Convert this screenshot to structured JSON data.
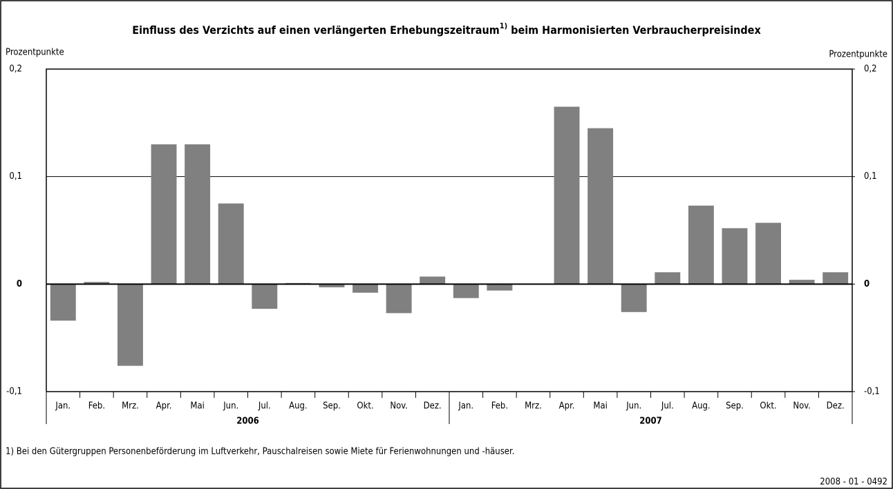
{
  "chart_data": {
    "type": "bar",
    "title": [
      "Einfluss des Verzichts auf einen verlängerten Erhebungszeitraum",
      "1)",
      " beim Harmonisierten Verbraucherpreisindex"
    ],
    "y_label": "Prozentpunkte",
    "y2_label": "Prozentpunkte",
    "categories": [
      "Jan.",
      "Feb.",
      "Mrz.",
      "Apr.",
      "Mai",
      "Jun.",
      "Jul.",
      "Aug.",
      "Sep.",
      "Okt.",
      "Nov.",
      "Dez.",
      "Jan.",
      "Feb.",
      "Mrz.",
      "Apr.",
      "Mai",
      "Jun.",
      "Jul.",
      "Aug.",
      "Sep.",
      "Okt.",
      "Nov.",
      "Dez."
    ],
    "groups": [
      "2006",
      "2007"
    ],
    "values": [
      -0.034,
      0.002,
      -0.076,
      0.13,
      0.13,
      0.075,
      -0.023,
      0.001,
      -0.003,
      -0.008,
      -0.027,
      0.007,
      -0.013,
      -0.006,
      0,
      0.165,
      0.145,
      -0.026,
      0.011,
      0.073,
      0.052,
      0.057,
      0.004,
      0.011
    ],
    "color": "#808080",
    "ylim": [
      -0.1,
      0.2
    ],
    "yticks": [
      {
        "value": -0.1,
        "label": "-0,1"
      },
      0,
      {
        "value": 0.1,
        "label": "0,1"
      },
      {
        "value": 0.2,
        "label": "0,2"
      }
    ],
    "y2lim": [
      -0.1,
      0.2
    ],
    "y2ticks": [
      {
        "value": -0.1,
        "label": "-0,1"
      },
      0,
      {
        "value": 0.1,
        "label": "0,1"
      },
      {
        "value": 0.2,
        "label": "0,2"
      }
    ],
    "grid": true,
    "footnote": "1) Bei den Gütergruppen Personenbeförderung im Luftverkehr, Pauschalreisen sowie Miete für Ferienwohnungen und -häuser.",
    "source": "2008 - 01 - 0492"
  }
}
